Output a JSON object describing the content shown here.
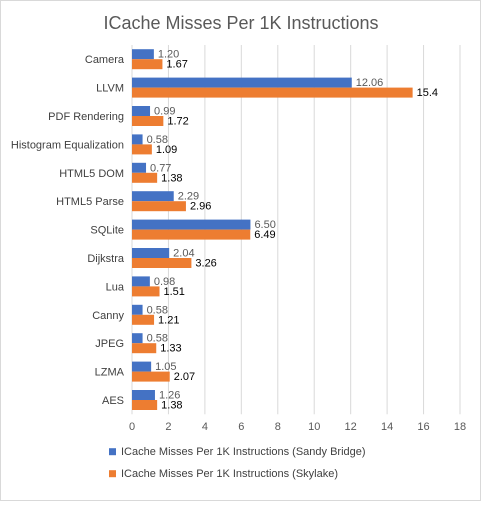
{
  "chart_data": {
    "type": "bar",
    "orientation": "horizontal",
    "title": "ICache Misses Per 1K Instructions",
    "categories": [
      "Camera",
      "LLVM",
      "PDF Rendering",
      "Histogram Equalization",
      "HTML5 DOM",
      "HTML5 Parse",
      "SQLite",
      "Dijkstra",
      "Lua",
      "Canny",
      "JPEG",
      "LZMA",
      "AES"
    ],
    "series": [
      {
        "name": "ICache Misses Per 1K Instructions (Sandy Bridge)",
        "color": "#4472C4",
        "values": [
          1.2,
          12.06,
          0.99,
          0.58,
          0.77,
          2.29,
          6.5,
          2.04,
          0.98,
          0.58,
          0.58,
          1.05,
          1.26
        ],
        "labels": [
          "1.20",
          "12.06",
          "0.99",
          "0.58",
          "0.77",
          "2.29",
          "6.50",
          "2.04",
          "0.98",
          "0.58",
          "0.58",
          "1.05",
          "1.26"
        ]
      },
      {
        "name": "ICache Misses Per 1K Instructions (Skylake)",
        "color": "#ED7D31",
        "values": [
          1.67,
          15.4,
          1.72,
          1.09,
          1.38,
          2.96,
          6.49,
          3.26,
          1.51,
          1.21,
          1.33,
          2.07,
          1.38
        ],
        "labels": [
          "1.67",
          "15.4",
          "1.72",
          "1.09",
          "1.38",
          "2.96",
          "6.49",
          "3.26",
          "1.51",
          "1.21",
          "1.33",
          "2.07",
          "1.38"
        ]
      }
    ],
    "xlim": [
      0,
      18
    ],
    "xticks": [
      "0",
      "2",
      "4",
      "6",
      "8",
      "10",
      "12",
      "14",
      "16",
      "18"
    ],
    "grid": true,
    "legend": "bottom"
  }
}
